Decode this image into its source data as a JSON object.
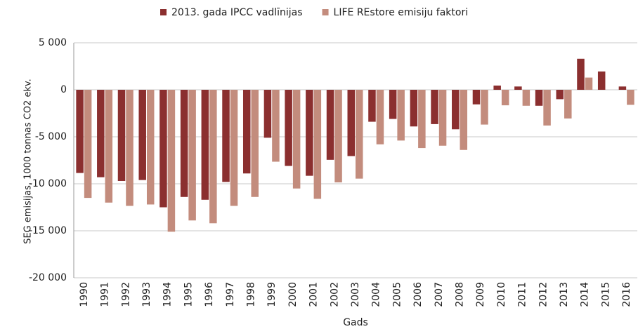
{
  "chart_data": {
    "type": "bar",
    "xlabel": "Gads",
    "ylabel": "SEG emisijas, 1000 tonnas CO2 ekv.",
    "categories": [
      "1990",
      "1991",
      "1992",
      "1993",
      "1994",
      "1995",
      "1996",
      "1997",
      "1998",
      "1999",
      "2000",
      "2001",
      "2002",
      "2003",
      "2004",
      "2005",
      "2006",
      "2007",
      "2008",
      "2009",
      "2010",
      "2011",
      "2012",
      "2013",
      "2014",
      "2015",
      "2016"
    ],
    "series": [
      {
        "name": "2013. gada IPCC vadlīnijas",
        "color": "#8b2f2f",
        "values": [
          -8850,
          -9300,
          -9700,
          -9600,
          -12500,
          -11400,
          -11700,
          -9800,
          -8900,
          -5100,
          -8100,
          -9150,
          -7450,
          -7050,
          -3400,
          -3100,
          -3900,
          -3650,
          -4200,
          -1550,
          450,
          350,
          -1700,
          -1000,
          3300,
          1950,
          350
        ]
      },
      {
        "name": "LIFE REstore emisiju faktori",
        "color": "#c38c7d",
        "values": [
          -11500,
          -12000,
          -12350,
          -12200,
          -15100,
          -13900,
          -14200,
          -12350,
          -11400,
          -7650,
          -10500,
          -11600,
          -9850,
          -9450,
          -5800,
          -5400,
          -6200,
          -5950,
          -6400,
          -3700,
          -1650,
          -1700,
          -3800,
          -3050,
          1300,
          null,
          -1600
        ]
      }
    ],
    "ylim": [
      -20000,
      5000
    ],
    "yticks": [
      {
        "value": -20000,
        "label": "-20 000"
      },
      {
        "value": -15000,
        "label": "-15 000"
      },
      {
        "value": -10000,
        "label": "-10 000"
      },
      {
        "value": -5000,
        "label": "-5 000"
      },
      0,
      {
        "value": 5000,
        "label": "5 000"
      }
    ],
    "grid": true,
    "legend": "top"
  }
}
